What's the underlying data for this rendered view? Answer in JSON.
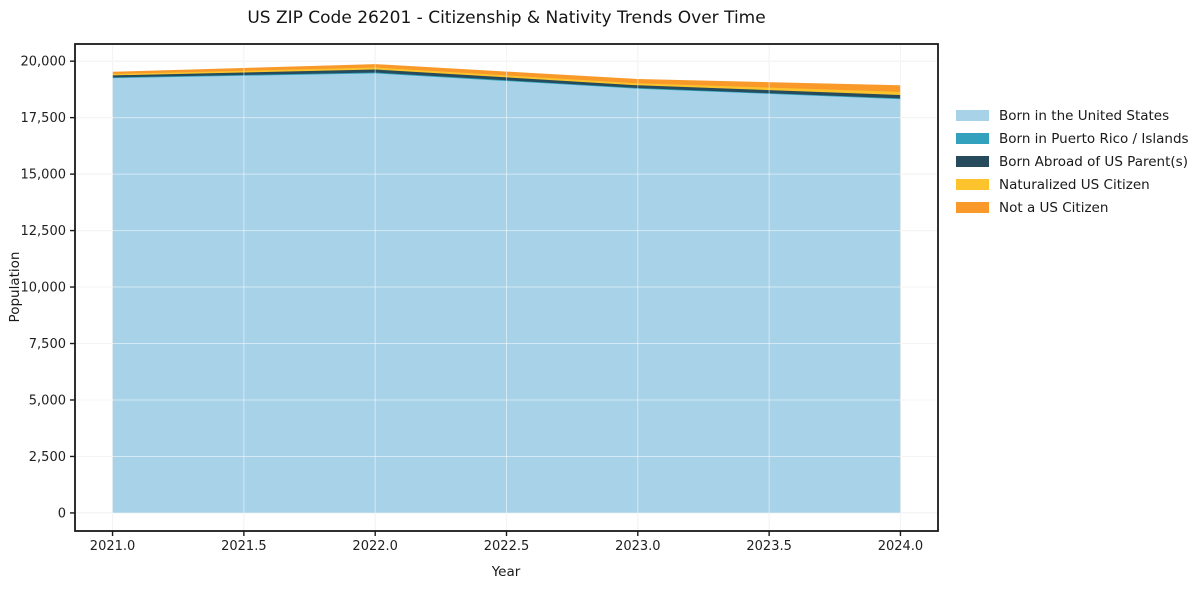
{
  "chart_data": {
    "type": "area",
    "stacked": true,
    "title": "US ZIP Code 26201 - Citizenship & Nativity Trends Over Time",
    "xlabel": "Year",
    "ylabel": "Population",
    "x": [
      2021,
      2022,
      2023,
      2024
    ],
    "series": [
      {
        "name": "Born in the United States",
        "color": "#a8d2e8",
        "values": [
          19250,
          19460,
          18780,
          18320
        ]
      },
      {
        "name": "Born in Puerto Rico / Islands",
        "color": "#31a1bd",
        "values": [
          30,
          40,
          30,
          30
        ]
      },
      {
        "name": "Born Abroad of US Parent(s)",
        "color": "#254b5c",
        "values": [
          90,
          130,
          120,
          150
        ]
      },
      {
        "name": "Naturalized US Citizen",
        "color": "#fcc32d",
        "values": [
          60,
          90,
          90,
          140
        ]
      },
      {
        "name": "Not a US Citizen",
        "color": "#f8992a",
        "values": [
          100,
          150,
          190,
          290
        ]
      }
    ],
    "x_ticks": [
      2021.0,
      2021.5,
      2022.0,
      2022.5,
      2023.0,
      2023.5,
      2024.0
    ],
    "y_ticks": [
      0,
      2500,
      5000,
      7500,
      10000,
      12500,
      15000,
      17500,
      20000
    ],
    "xlim": [
      2020.857,
      2024.143
    ],
    "ylim": [
      -800,
      20760
    ],
    "grid": true,
    "legend_position": "right",
    "colors": {
      "grid_under": "#e8e8e8",
      "grid_over": "rgba(255,255,255,0.5)",
      "frame": "#1a1a1a",
      "tick_text": "#1f1f1f"
    }
  }
}
